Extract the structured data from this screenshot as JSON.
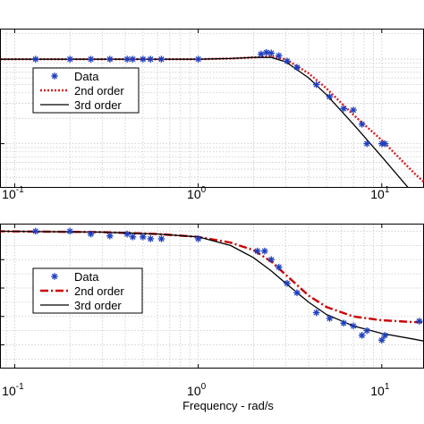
{
  "chart_data": [
    {
      "type": "line",
      "x_scale": "log",
      "y_scale": "log",
      "xlabel": "",
      "ylabel": "",
      "grid": true,
      "legend_position": "left",
      "x_ticks": [
        {
          "base": "10",
          "exp": "-1"
        },
        {
          "base": "10",
          "exp": "0"
        },
        {
          "base": "10",
          "exp": "1"
        }
      ],
      "series": [
        {
          "name": "Data",
          "marker": "asterisk",
          "color": "#1f3fbf",
          "points": [
            [
              0.13,
              1.0
            ],
            [
              0.2,
              1.0
            ],
            [
              0.26,
              1.0
            ],
            [
              0.33,
              1.0
            ],
            [
              0.41,
              1.0
            ],
            [
              0.44,
              1.0
            ],
            [
              0.5,
              1.0
            ],
            [
              0.55,
              1.0
            ],
            [
              0.63,
              1.0
            ],
            [
              1.0,
              1.0
            ],
            [
              2.2,
              1.15
            ],
            [
              2.35,
              1.2
            ],
            [
              2.5,
              1.18
            ],
            [
              2.75,
              1.1
            ],
            [
              3.05,
              0.95
            ],
            [
              3.45,
              0.8
            ],
            [
              4.4,
              0.5
            ],
            [
              5.2,
              0.36
            ],
            [
              6.2,
              0.26
            ],
            [
              7.0,
              0.25
            ],
            [
              7.8,
              0.17
            ],
            [
              8.3,
              0.1
            ],
            [
              10.0,
              0.1
            ],
            [
              10.4,
              0.1
            ]
          ]
        },
        {
          "name": "2nd order",
          "line_style": "dotted",
          "color": "#d42020",
          "points": [
            [
              0.08,
              1.0
            ],
            [
              0.3,
              1.0
            ],
            [
              1.0,
              1.0
            ],
            [
              1.5,
              1.02
            ],
            [
              2.0,
              1.05
            ],
            [
              2.5,
              1.08
            ],
            [
              3.0,
              1.0
            ],
            [
              4.0,
              0.68
            ],
            [
              5.0,
              0.45
            ],
            [
              7.0,
              0.22
            ],
            [
              10.0,
              0.11
            ],
            [
              15.0,
              0.045
            ],
            [
              17.0,
              0.035
            ]
          ]
        },
        {
          "name": "3rd order",
          "line_style": "solid",
          "color": "#000000",
          "points": [
            [
              0.08,
              1.0
            ],
            [
              0.3,
              1.0
            ],
            [
              1.0,
              1.0
            ],
            [
              1.5,
              1.02
            ],
            [
              2.0,
              1.05
            ],
            [
              2.5,
              1.05
            ],
            [
              3.0,
              0.93
            ],
            [
              4.0,
              0.6
            ],
            [
              5.0,
              0.38
            ],
            [
              7.0,
              0.17
            ],
            [
              10.0,
              0.07
            ],
            [
              15.0,
              0.025
            ],
            [
              17.0,
              0.018
            ]
          ]
        }
      ]
    },
    {
      "type": "line",
      "x_scale": "log",
      "xlabel": "Frequency - rad/s",
      "ylabel": "",
      "grid": true,
      "legend_position": "left",
      "x_ticks": [
        {
          "base": "10",
          "exp": "-1"
        },
        {
          "base": "10",
          "exp": "0"
        },
        {
          "base": "10",
          "exp": "1"
        }
      ],
      "series": [
        {
          "name": "Data",
          "marker": "asterisk",
          "color": "#1f3fbf",
          "points": [
            [
              0.13,
              0.0
            ],
            [
              0.2,
              0.0
            ],
            [
              0.26,
              -3
            ],
            [
              0.33,
              -5
            ],
            [
              0.41,
              -3
            ],
            [
              0.44,
              -6
            ],
            [
              0.5,
              -6
            ],
            [
              0.55,
              -8
            ],
            [
              0.63,
              -8
            ],
            [
              1.0,
              -8
            ],
            [
              2.1,
              -21
            ],
            [
              2.3,
              -21
            ],
            [
              2.5,
              -30
            ],
            [
              2.75,
              -38
            ],
            [
              3.05,
              -55
            ],
            [
              3.45,
              -65
            ],
            [
              4.4,
              -86
            ],
            [
              5.2,
              -92
            ],
            [
              6.2,
              -97
            ],
            [
              7.0,
              -100
            ],
            [
              7.8,
              -110
            ],
            [
              8.3,
              -105
            ],
            [
              10.0,
              -115
            ],
            [
              10.4,
              -110
            ],
            [
              16.0,
              -95
            ]
          ]
        },
        {
          "name": "2nd order",
          "line_style": "dashdot",
          "color": "#cc0000",
          "points": [
            [
              0.08,
              0.0
            ],
            [
              0.3,
              -1
            ],
            [
              0.6,
              -3
            ],
            [
              1.0,
              -6
            ],
            [
              1.5,
              -12
            ],
            [
              2.0,
              -20
            ],
            [
              2.5,
              -32
            ],
            [
              3.0,
              -46
            ],
            [
              4.0,
              -68
            ],
            [
              5.0,
              -80
            ],
            [
              7.0,
              -90
            ],
            [
              10.0,
              -94
            ],
            [
              15.0,
              -96
            ],
            [
              17.0,
              -96
            ]
          ]
        },
        {
          "name": "3rd order",
          "line_style": "solid",
          "color": "#000000",
          "points": [
            [
              0.08,
              0.0
            ],
            [
              0.3,
              -1
            ],
            [
              0.6,
              -3
            ],
            [
              1.0,
              -6
            ],
            [
              1.5,
              -15
            ],
            [
              2.0,
              -28
            ],
            [
              2.5,
              -42
            ],
            [
              3.0,
              -55
            ],
            [
              4.0,
              -75
            ],
            [
              5.0,
              -88
            ],
            [
              7.0,
              -100
            ],
            [
              10.0,
              -108
            ],
            [
              15.0,
              -114
            ],
            [
              17.0,
              -116
            ]
          ]
        }
      ]
    }
  ]
}
